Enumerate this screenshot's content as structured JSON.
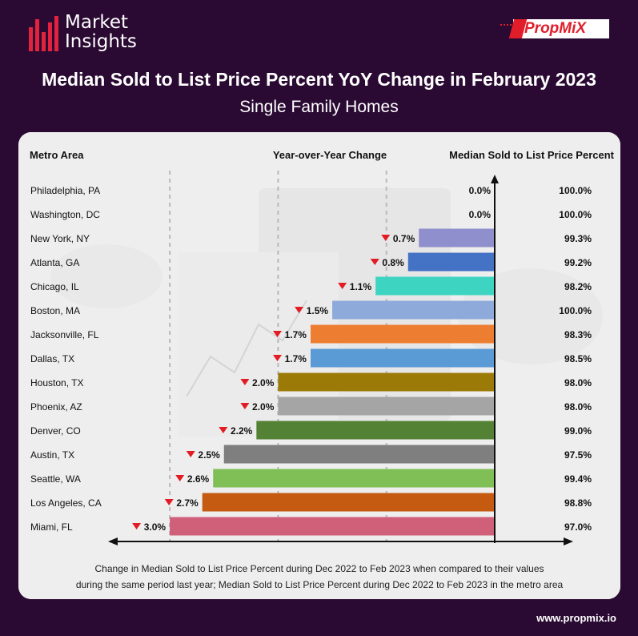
{
  "header": {
    "logo_line1": "Market",
    "logo_line2": "Insights",
    "brand": "PropMiX",
    "title": "Median Sold to List Price Percent YoY Change in February 2023",
    "subtitle": "Single Family Homes"
  },
  "colors": {
    "background": "#2a0a33",
    "accent": "#e2233f",
    "down_arrow": "#e31b23"
  },
  "chart_data": {
    "type": "bar",
    "orientation": "horizontal",
    "columns": {
      "category": "Metro Area",
      "yoy": "Year-over-Year Change",
      "value": "Median Sold to List Price Percent"
    },
    "categories": [
      "Philadelphia, PA",
      "Washington, DC",
      "New York, NY",
      "Atlanta, GA",
      "Chicago, IL",
      "Boston, MA",
      "Jacksonville, FL",
      "Dallas, TX",
      "Houston, TX",
      "Phoenix, AZ",
      "Denver, CO",
      "Austin, TX",
      "Seattle, WA",
      "Los Angeles, CA",
      "Miami, FL"
    ],
    "yoy_change": [
      0.0,
      0.0,
      -0.7,
      -0.8,
      -1.1,
      -1.5,
      -1.7,
      -1.7,
      -2.0,
      -2.0,
      -2.2,
      -2.5,
      -2.6,
      -2.7,
      -3.0
    ],
    "yoy_labels": [
      "0.0%",
      "0.0%",
      "0.7%",
      "0.8%",
      "1.1%",
      "1.5%",
      "1.7%",
      "1.7%",
      "2.0%",
      "2.0%",
      "2.2%",
      "2.5%",
      "2.6%",
      "2.7%",
      "3.0%"
    ],
    "median_sold_to_list": [
      "100.0%",
      "100.0%",
      "99.3%",
      "99.2%",
      "98.2%",
      "100.0%",
      "98.3%",
      "98.5%",
      "98.0%",
      "98.0%",
      "99.0%",
      "97.5%",
      "99.4%",
      "98.8%",
      "97.0%"
    ],
    "bar_colors": [
      "#8f8fce",
      "#8f8fce",
      "#8f8fce",
      "#4472c4",
      "#3ed4c2",
      "#8eaadb",
      "#ed7d31",
      "#5b9bd5",
      "#9c7a08",
      "#a5a5a5",
      "#548235",
      "#7f7f7f",
      "#7fbf55",
      "#c55a11",
      "#d0607a"
    ],
    "xlim": [
      -3.0,
      0.0
    ],
    "grid": "dashed vertical lines"
  },
  "footnote": {
    "line1": "Change in Median Sold to List Price Percent during Dec 2022 to Feb 2023 when compared to their values",
    "line2": "during the same period last year; Median Sold to List Price Percent during Dec 2022 to Feb 2023 in the metro area"
  },
  "url": "www.propmix.io"
}
